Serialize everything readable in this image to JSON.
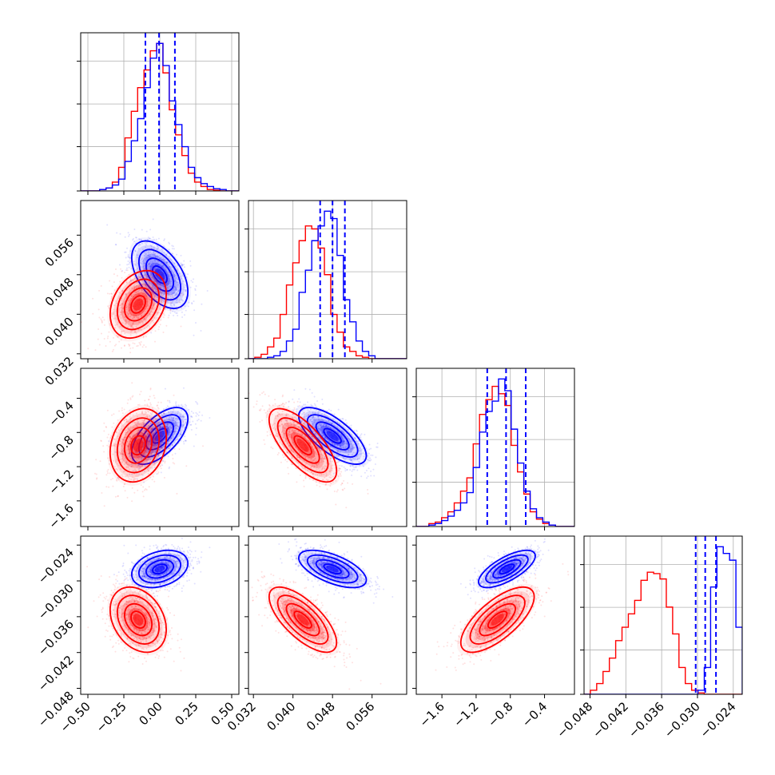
{
  "chart_data": {
    "type": "corner",
    "grid": true,
    "series": [
      {
        "color": "#0000ff",
        "means": [
          0.0,
          0.048,
          -0.84,
          -0.028
        ],
        "stds": [
          0.1,
          0.0035,
          0.17,
          0.0016
        ],
        "corr": [
          [
            1,
            -0.5,
            0.6,
            0.3
          ],
          [
            -0.5,
            1,
            -0.7,
            -0.6
          ],
          [
            0.6,
            -0.7,
            1,
            0.7
          ],
          [
            0.3,
            -0.6,
            0.7,
            1
          ]
        ]
      },
      {
        "color": "#ff0000",
        "means": [
          -0.15,
          0.042,
          -0.95,
          -0.0365
        ],
        "stds": [
          0.1,
          0.0035,
          0.22,
          0.0028
        ],
        "corr": [
          [
            1,
            0.3,
            0.2,
            -0.3
          ],
          [
            0.3,
            1,
            -0.7,
            -0.7
          ],
          [
            0.2,
            -0.7,
            1,
            0.7
          ],
          [
            -0.3,
            -0.7,
            0.7,
            1
          ]
        ]
      }
    ],
    "quantile_lines": {
      "color": "#0000ff",
      "values": [
        [
          -0.1,
          -0.005,
          0.105
        ],
        [
          0.0455,
          0.048,
          0.0505
        ],
        [
          -1.07,
          -0.85,
          -0.62
        ],
        [
          -0.0303,
          -0.0287,
          -0.0269
        ]
      ]
    },
    "axes": [
      {
        "range": [
          -0.55,
          0.55
        ],
        "ticks": [
          -0.5,
          -0.25,
          0.0,
          0.25,
          0.5
        ],
        "tick_labels": [
          "−0.50",
          "−0.25",
          "0.00",
          "0.25",
          "0.50"
        ]
      },
      {
        "range": [
          0.031,
          0.063
        ],
        "ticks": [
          0.032,
          0.04,
          0.048,
          0.056
        ],
        "tick_labels": [
          "0.032",
          "0.040",
          "0.048",
          "0.056"
        ]
      },
      {
        "range": [
          -1.9,
          -0.05
        ],
        "ticks": [
          -1.6,
          -1.2,
          -0.8,
          -0.4
        ],
        "tick_labels": [
          "−1.6",
          "−1.2",
          "−0.8",
          "−0.4"
        ]
      },
      {
        "range": [
          -0.049,
          -0.0225
        ],
        "ticks": [
          -0.048,
          -0.042,
          -0.036,
          -0.03,
          -0.024
        ],
        "tick_labels": [
          "−0.048",
          "−0.042",
          "−0.036",
          "−0.030",
          "−0.024"
        ]
      }
    ],
    "histograms": [
      {
        "blue": [
          0,
          0,
          0,
          1,
          2,
          4,
          8,
          20,
          34,
          49,
          70,
          90,
          100,
          85,
          61,
          45,
          30,
          16,
          9,
          5,
          3,
          1.5,
          1,
          0,
          0
        ],
        "red": [
          0,
          0,
          0,
          1,
          2,
          6,
          16,
          36,
          54,
          70,
          82,
          95,
          100,
          80,
          55,
          38,
          24,
          12,
          6,
          3,
          1,
          0.5,
          0,
          0,
          0
        ]
      },
      {
        "blue": [
          0,
          0,
          0,
          1,
          2,
          5,
          12,
          20,
          45,
          60,
          80,
          90,
          100,
          95,
          70,
          40,
          25,
          12,
          5,
          2,
          0,
          0,
          0,
          0,
          0
        ],
        "red": [
          0,
          1,
          3,
          8,
          14,
          30,
          50,
          65,
          80,
          90,
          88,
          75,
          57,
          30,
          18,
          8,
          5,
          2,
          1,
          0,
          0,
          0,
          0,
          0,
          0
        ]
      },
      {
        "blue": [
          0,
          0,
          1,
          2,
          4,
          7,
          11,
          16,
          23,
          40,
          64,
          78,
          85,
          100,
          92,
          66,
          43,
          24,
          12,
          6,
          3,
          1,
          0,
          0,
          0
        ],
        "red": [
          0,
          0,
          2,
          3,
          6,
          10,
          16,
          24,
          33,
          56,
          76,
          86,
          95,
          90,
          82,
          55,
          37,
          22,
          10,
          5,
          2,
          1,
          0,
          0,
          0
        ]
      },
      {
        "blue": [
          0,
          0,
          0,
          0,
          0,
          0,
          0,
          0,
          0,
          0,
          0,
          0,
          0,
          0,
          0,
          0,
          0,
          0,
          3,
          20,
          80,
          110,
          105,
          100,
          50
        ],
        "red": [
          0,
          3,
          8,
          17,
          27,
          40,
          50,
          60,
          70,
          85,
          91,
          90,
          86,
          65,
          45,
          20,
          8,
          3,
          1,
          0,
          0,
          0,
          0,
          0,
          0
        ]
      }
    ]
  }
}
